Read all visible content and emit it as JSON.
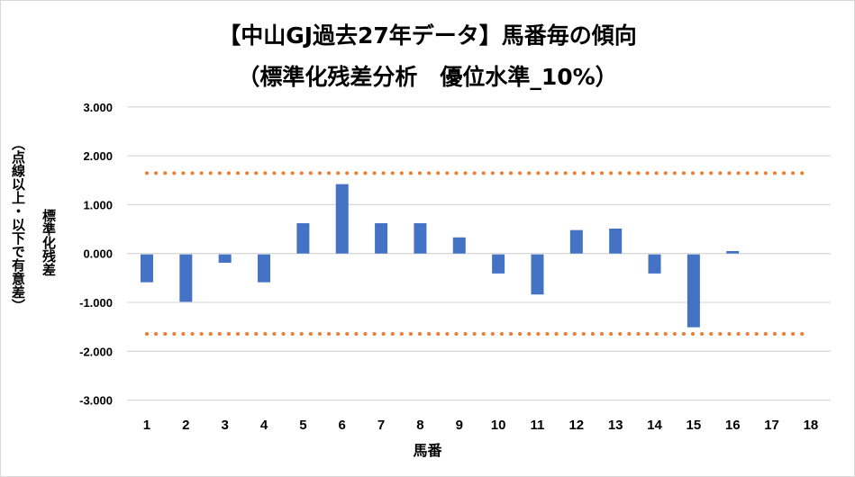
{
  "chart_data": {
    "type": "bar",
    "title": [
      "【中山GJ過去27年データ】馬番毎の傾向",
      "（標準化残差分析　優位水準_10%）"
    ],
    "xlabel": "馬番",
    "ylabel": "標準化残差",
    "ylabel2": "（点線以上・以下で有意差）",
    "categories": [
      "1",
      "2",
      "3",
      "4",
      "5",
      "6",
      "7",
      "8",
      "9",
      "10",
      "11",
      "12",
      "13",
      "14",
      "15",
      "16",
      "17",
      "18"
    ],
    "values": [
      -0.57,
      -0.97,
      -0.17,
      -0.57,
      0.62,
      1.42,
      0.62,
      0.62,
      0.33,
      -0.39,
      -0.82,
      0.48,
      0.51,
      -0.39,
      -1.49,
      0.05,
      0,
      0
    ],
    "yticks": [
      "3.000",
      "2.000",
      "1.000",
      "0.000",
      "-1.000",
      "-2.000",
      "-3.000"
    ],
    "ylim": [
      -3,
      3
    ],
    "threshold_lines": [
      1.645,
      -1.645
    ],
    "grid": true,
    "colors": {
      "bar": "#4472c4",
      "threshold": "#ed7d31",
      "grid": "#d9d9d9"
    }
  }
}
